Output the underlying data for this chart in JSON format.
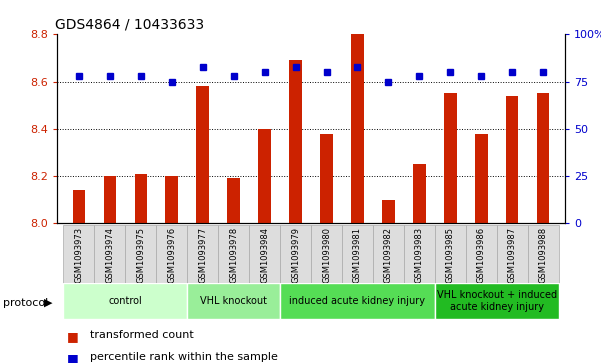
{
  "title": "GDS4864 / 10433633",
  "samples": [
    "GSM1093973",
    "GSM1093974",
    "GSM1093975",
    "GSM1093976",
    "GSM1093977",
    "GSM1093978",
    "GSM1093984",
    "GSM1093979",
    "GSM1093980",
    "GSM1093981",
    "GSM1093982",
    "GSM1093983",
    "GSM1093985",
    "GSM1093986",
    "GSM1093987",
    "GSM1093988"
  ],
  "transformed_count": [
    8.14,
    8.2,
    8.21,
    8.2,
    8.58,
    8.19,
    8.4,
    8.69,
    8.38,
    8.8,
    8.1,
    8.25,
    8.55,
    8.38,
    8.54,
    8.55
  ],
  "percentile_rank": [
    78,
    78,
    78,
    75,
    83,
    78,
    80,
    83,
    80,
    83,
    75,
    78,
    80,
    78,
    80,
    80
  ],
  "ylim_left": [
    8.0,
    8.8
  ],
  "ylim_right": [
    0,
    100
  ],
  "yticks_left": [
    8.0,
    8.2,
    8.4,
    8.6,
    8.8
  ],
  "yticks_right": [
    0,
    25,
    50,
    75,
    100
  ],
  "grid_values": [
    8.2,
    8.4,
    8.6
  ],
  "bar_color": "#cc2200",
  "dot_color": "#0000cc",
  "groups": [
    {
      "label": "control",
      "start": 0,
      "end": 4,
      "color": "#ccffcc"
    },
    {
      "label": "VHL knockout",
      "start": 4,
      "end": 7,
      "color": "#99ee99"
    },
    {
      "label": "induced acute kidney injury",
      "start": 7,
      "end": 12,
      "color": "#55dd55"
    },
    {
      "label": "VHL knockout + induced\nacute kidney injury",
      "start": 12,
      "end": 16,
      "color": "#22bb22"
    }
  ],
  "legend_item1": "transformed count",
  "legend_item2": "percentile rank within the sample",
  "legend_color1": "#cc2200",
  "legend_color2": "#0000cc",
  "title_fontsize": 10,
  "axis_color_left": "#cc2200",
  "axis_color_right": "#0000cc",
  "protocol_label": "protocol"
}
